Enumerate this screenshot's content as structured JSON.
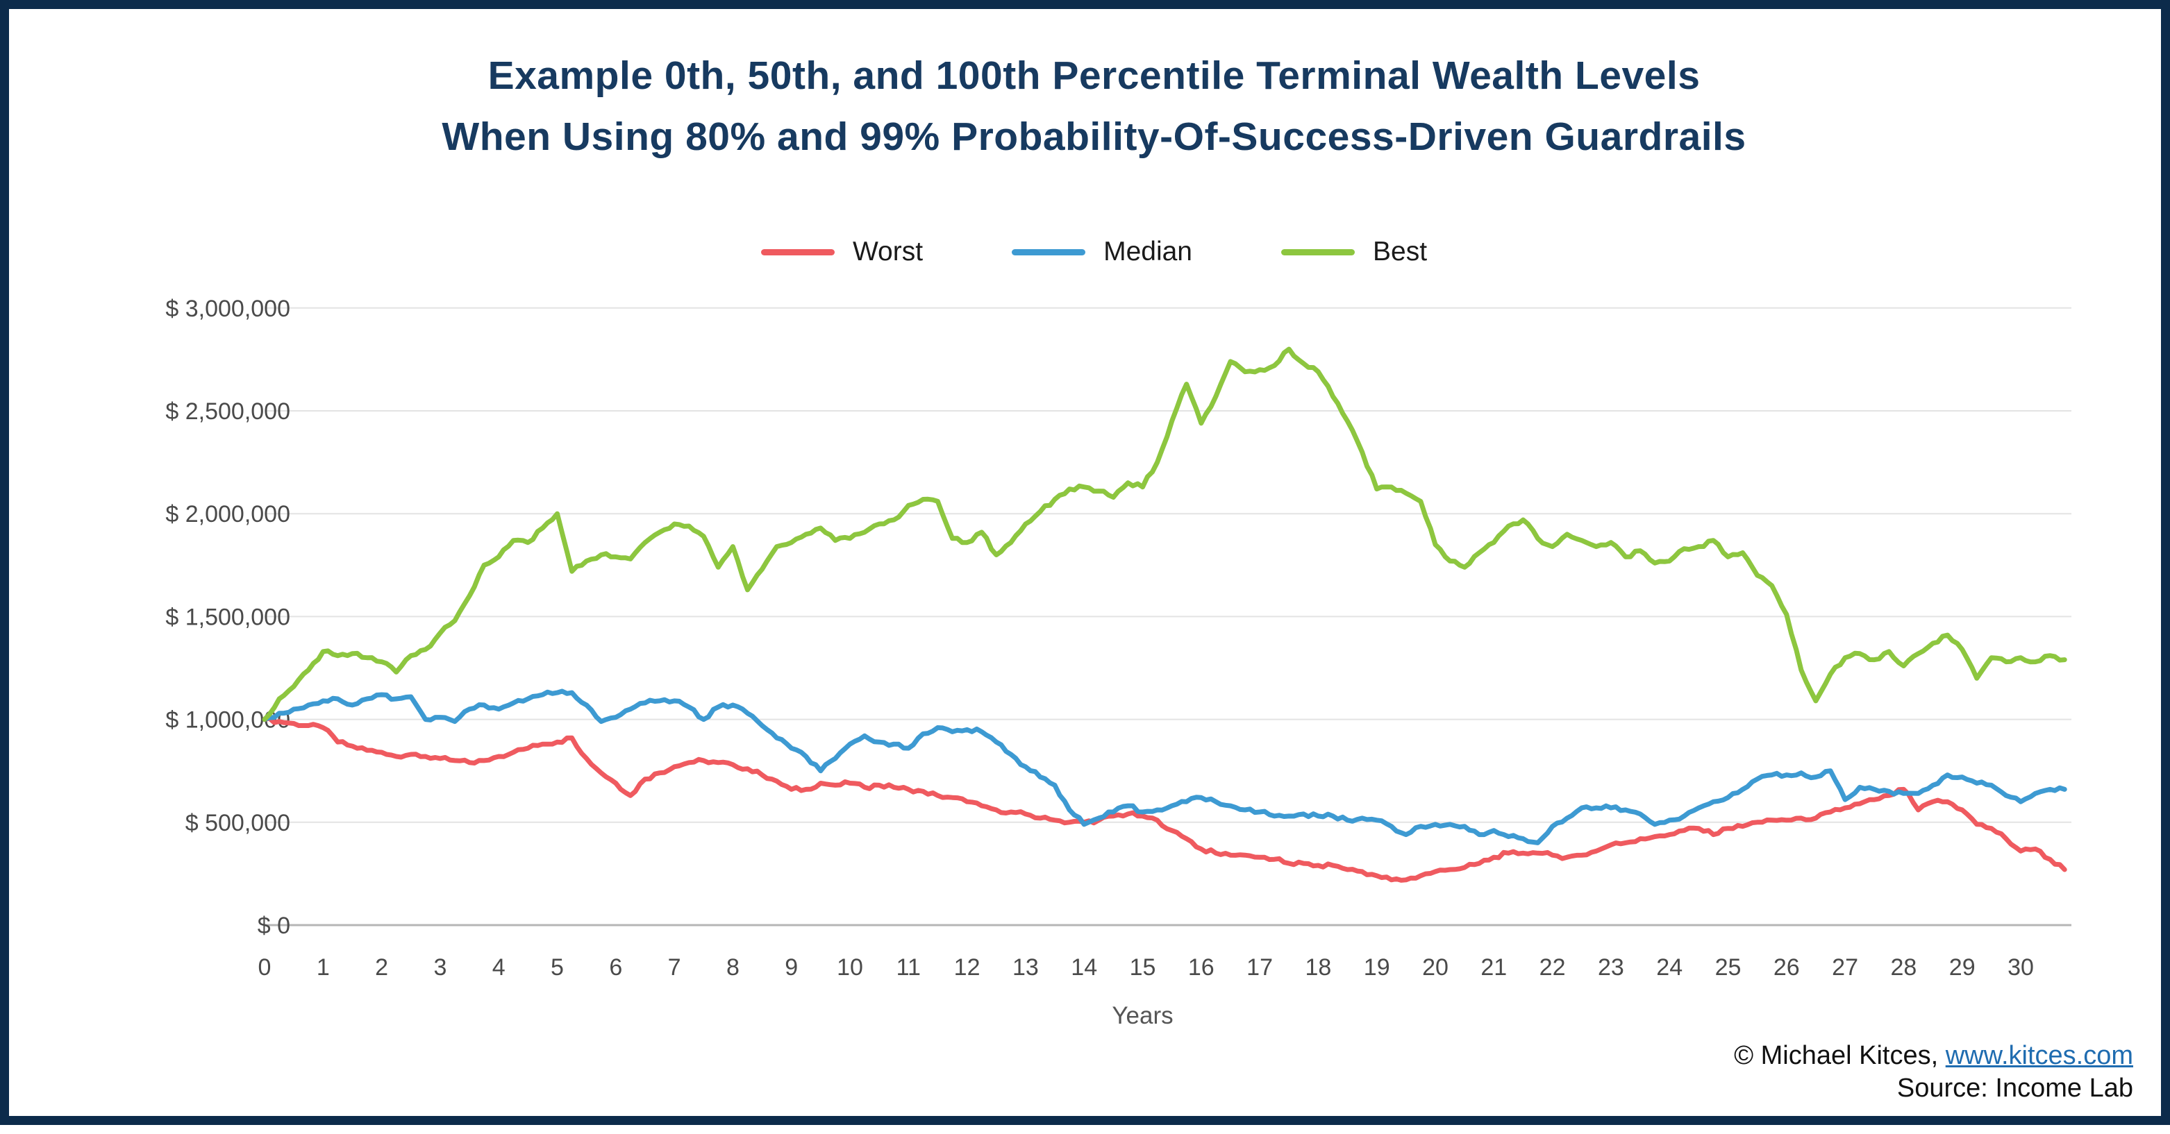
{
  "page": {
    "title_line1": "Example 0th, 50th, and 100th Percentile Terminal Wealth Levels",
    "title_line2": "When Using 80% and 99% Probability-Of-Success-Driven Guardrails",
    "title_color": "#173a60",
    "border_color": "#0c2b4b"
  },
  "legend": {
    "items": [
      {
        "label": "Worst",
        "color": "#ef5a5f"
      },
      {
        "label": "Median",
        "color": "#3d9ad2"
      },
      {
        "label": "Best",
        "color": "#8dc63f"
      }
    ]
  },
  "footer": {
    "copyright_prefix": "© Michael Kitces, ",
    "link_text": "www.kitces.com",
    "source_line": "Source: Income Lab"
  },
  "chart_data": {
    "type": "line",
    "title": "Example 0th, 50th, and 100th Percentile Terminal Wealth Levels When Using 80% and 99% Probability-Of-Success-Driven Guardrails",
    "xlabel": "Years",
    "ylabel": "",
    "grid": "horizontal",
    "legend_position": "top-center",
    "xlim": [
      0,
      30.85
    ],
    "ylim": [
      0,
      3000000
    ],
    "x_tick_labels": [
      "0",
      "1",
      "2",
      "3",
      "4",
      "5",
      "6",
      "7",
      "8",
      "9",
      "10",
      "11",
      "12",
      "13",
      "14",
      "15",
      "16",
      "17",
      "18",
      "19",
      "20",
      "21",
      "22",
      "23",
      "24",
      "25",
      "26",
      "27",
      "28",
      "29",
      "30"
    ],
    "y_tick_values": [
      3000000,
      2500000,
      2000000,
      1500000,
      1000000,
      500000,
      0
    ],
    "y_tick_labels": [
      "$ 3,000,000",
      "$ 2,500,000",
      "$ 2,000,000",
      "$ 1,500,000",
      "$ 1,000,000",
      "$ 500,000",
      "$ 0"
    ],
    "x_start": 0,
    "x_step": 0.25,
    "units": "millions_of_dollars",
    "series": [
      {
        "name": "Worst",
        "color": "#ef5a5f",
        "values_millions": [
          1.0,
          0.99,
          0.98,
          0.97,
          0.96,
          0.89,
          0.87,
          0.85,
          0.84,
          0.82,
          0.83,
          0.82,
          0.81,
          0.8,
          0.79,
          0.8,
          0.82,
          0.84,
          0.86,
          0.88,
          0.89,
          0.91,
          0.81,
          0.74,
          0.69,
          0.63,
          0.71,
          0.74,
          0.77,
          0.79,
          0.8,
          0.79,
          0.78,
          0.76,
          0.73,
          0.7,
          0.66,
          0.66,
          0.69,
          0.68,
          0.69,
          0.67,
          0.68,
          0.67,
          0.66,
          0.65,
          0.63,
          0.62,
          0.6,
          0.58,
          0.56,
          0.55,
          0.54,
          0.52,
          0.51,
          0.5,
          0.5,
          0.51,
          0.53,
          0.54,
          0.53,
          0.51,
          0.46,
          0.42,
          0.37,
          0.35,
          0.34,
          0.34,
          0.33,
          0.32,
          0.3,
          0.3,
          0.29,
          0.29,
          0.27,
          0.26,
          0.24,
          0.22,
          0.22,
          0.24,
          0.26,
          0.27,
          0.28,
          0.3,
          0.33,
          0.35,
          0.35,
          0.35,
          0.34,
          0.33,
          0.34,
          0.36,
          0.39,
          0.4,
          0.42,
          0.43,
          0.44,
          0.46,
          0.47,
          0.44,
          0.47,
          0.48,
          0.5,
          0.51,
          0.51,
          0.52,
          0.52,
          0.55,
          0.57,
          0.59,
          0.61,
          0.63,
          0.66,
          0.56,
          0.6,
          0.6,
          0.56,
          0.49,
          0.47,
          0.42,
          0.36,
          0.37,
          0.32,
          0.27
        ]
      },
      {
        "name": "Median",
        "color": "#3d9ad2",
        "values_millions": [
          1.0,
          1.03,
          1.05,
          1.07,
          1.09,
          1.1,
          1.07,
          1.1,
          1.12,
          1.1,
          1.11,
          1.0,
          1.01,
          0.99,
          1.05,
          1.07,
          1.05,
          1.08,
          1.1,
          1.12,
          1.13,
          1.13,
          1.07,
          0.99,
          1.01,
          1.05,
          1.08,
          1.09,
          1.09,
          1.06,
          1.0,
          1.06,
          1.07,
          1.03,
          0.97,
          0.91,
          0.86,
          0.82,
          0.75,
          0.81,
          0.88,
          0.92,
          0.89,
          0.88,
          0.86,
          0.93,
          0.96,
          0.94,
          0.95,
          0.94,
          0.89,
          0.83,
          0.77,
          0.72,
          0.68,
          0.56,
          0.49,
          0.52,
          0.55,
          0.58,
          0.55,
          0.56,
          0.58,
          0.6,
          0.62,
          0.6,
          0.58,
          0.56,
          0.55,
          0.53,
          0.53,
          0.54,
          0.53,
          0.53,
          0.51,
          0.52,
          0.51,
          0.48,
          0.44,
          0.48,
          0.49,
          0.49,
          0.48,
          0.44,
          0.46,
          0.43,
          0.42,
          0.4,
          0.48,
          0.52,
          0.57,
          0.57,
          0.57,
          0.56,
          0.54,
          0.49,
          0.51,
          0.53,
          0.57,
          0.6,
          0.62,
          0.66,
          0.71,
          0.73,
          0.73,
          0.74,
          0.72,
          0.75,
          0.61,
          0.67,
          0.66,
          0.65,
          0.64,
          0.64,
          0.68,
          0.73,
          0.72,
          0.69,
          0.68,
          0.63,
          0.6,
          0.64,
          0.66,
          0.66
        ]
      },
      {
        "name": "Best",
        "color": "#8dc63f",
        "values_millions": [
          1.0,
          1.1,
          1.16,
          1.24,
          1.33,
          1.31,
          1.32,
          1.3,
          1.28,
          1.23,
          1.31,
          1.34,
          1.42,
          1.48,
          1.6,
          1.75,
          1.79,
          1.87,
          1.86,
          1.93,
          2.0,
          1.72,
          1.77,
          1.8,
          1.79,
          1.78,
          1.86,
          1.91,
          1.95,
          1.94,
          1.89,
          1.74,
          1.84,
          1.63,
          1.73,
          1.84,
          1.86,
          1.9,
          1.93,
          1.87,
          1.88,
          1.91,
          1.95,
          1.97,
          2.04,
          2.07,
          2.06,
          1.88,
          1.86,
          1.91,
          1.8,
          1.86,
          1.95,
          2.01,
          2.07,
          2.12,
          2.13,
          2.11,
          2.08,
          2.15,
          2.13,
          2.25,
          2.45,
          2.63,
          2.44,
          2.57,
          2.74,
          2.69,
          2.7,
          2.72,
          2.8,
          2.73,
          2.69,
          2.57,
          2.45,
          2.3,
          2.12,
          2.13,
          2.1,
          2.06,
          1.85,
          1.77,
          1.74,
          1.81,
          1.86,
          1.94,
          1.97,
          1.88,
          1.84,
          1.9,
          1.87,
          1.84,
          1.86,
          1.79,
          1.82,
          1.76,
          1.77,
          1.83,
          1.84,
          1.87,
          1.79,
          1.81,
          1.7,
          1.65,
          1.51,
          1.24,
          1.09,
          1.22,
          1.3,
          1.32,
          1.29,
          1.33,
          1.26,
          1.32,
          1.37,
          1.41,
          1.34,
          1.2,
          1.3,
          1.28,
          1.3,
          1.28,
          1.31,
          1.29
        ]
      }
    ],
    "style": {
      "gridline_color": "#e3e3e3",
      "axis_line_color": "#b5b5b5",
      "tick_label_color": "#4a4a4a",
      "line_width": 7
    }
  }
}
